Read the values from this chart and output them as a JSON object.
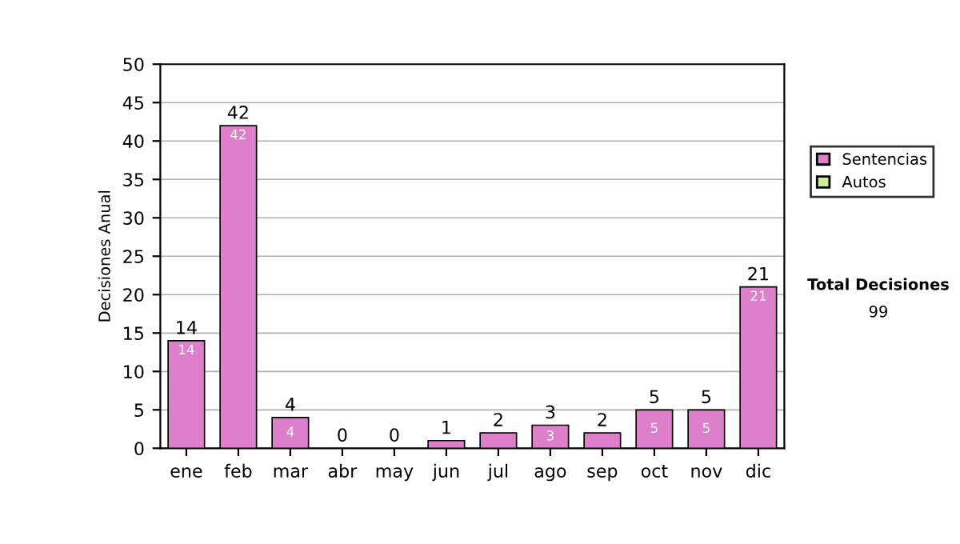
{
  "chart_data": {
    "type": "bar",
    "ylabel": "Decisiones Anual",
    "categories": [
      "ene",
      "feb",
      "mar",
      "abr",
      "may",
      "jun",
      "jul",
      "ago",
      "sep",
      "oct",
      "nov",
      "dic"
    ],
    "stacked": true,
    "series": [
      {
        "name": "Sentencias",
        "color": "#de7fcb",
        "values": [
          14,
          42,
          4,
          0,
          0,
          1,
          2,
          3,
          2,
          5,
          5,
          21
        ],
        "value_labels": [
          "14",
          "42",
          "4",
          null,
          null,
          null,
          null,
          "3",
          null,
          "5",
          "5",
          "21"
        ]
      },
      {
        "name": "Autos",
        "color": "#ccee99",
        "values": [
          0,
          0,
          0,
          0,
          0,
          0,
          0,
          0,
          0,
          0,
          0,
          0
        ]
      }
    ],
    "totals": [
      "14",
      "42",
      "4",
      "0",
      "0",
      "1",
      "2",
      "3",
      "2",
      "5",
      "5",
      "21"
    ],
    "ylim": [
      0,
      50
    ],
    "yticks": [
      0,
      5,
      10,
      15,
      20,
      25,
      30,
      35,
      40,
      45,
      50
    ],
    "grid": "y",
    "legend": "right",
    "annotations": [
      "Total Decisiones",
      "99"
    ]
  }
}
